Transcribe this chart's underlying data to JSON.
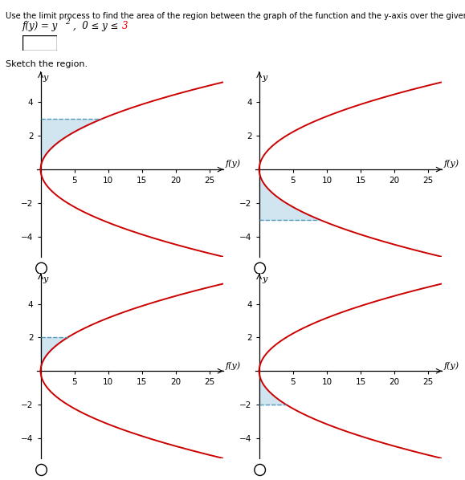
{
  "title_text": "Use the limit process to find the area of the region between the graph of the function and the y-axis over the given y-interval.",
  "func_text1": "f(y) = y",
  "func_sup": "2",
  "func_text2": ",  0 ≤ y ≤ ",
  "func_num": "3",
  "sketch_label": "Sketch the region.",
  "shade_configs": [
    {
      "y_lo": 0,
      "y_hi": 3,
      "dashed_y": 3,
      "dashed_x_max": 9
    },
    {
      "y_lo": -3,
      "y_hi": 0,
      "dashed_y": -3,
      "dashed_x_max": 9
    },
    {
      "y_lo": 0,
      "y_hi": 2,
      "dashed_y": 2,
      "dashed_x_max": 4
    },
    {
      "y_lo": -2,
      "y_hi": 0,
      "dashed_y": -2,
      "dashed_x_max": 4
    }
  ],
  "xlim": [
    -0.5,
    27
  ],
  "ylim": [
    -5.2,
    5.8
  ],
  "xticks": [
    5,
    10,
    15,
    20,
    25
  ],
  "yticks": [
    -4,
    -2,
    2,
    4
  ],
  "curve_color": "#cc0000",
  "shade_color": "#b8d8e8",
  "shade_alpha": 0.65,
  "dashed_color": "#5599bb",
  "axis_color": "#000000",
  "ylabel": "y",
  "xlabel": "f(y)",
  "tick_fontsize": 7.5,
  "label_fontsize": 8
}
